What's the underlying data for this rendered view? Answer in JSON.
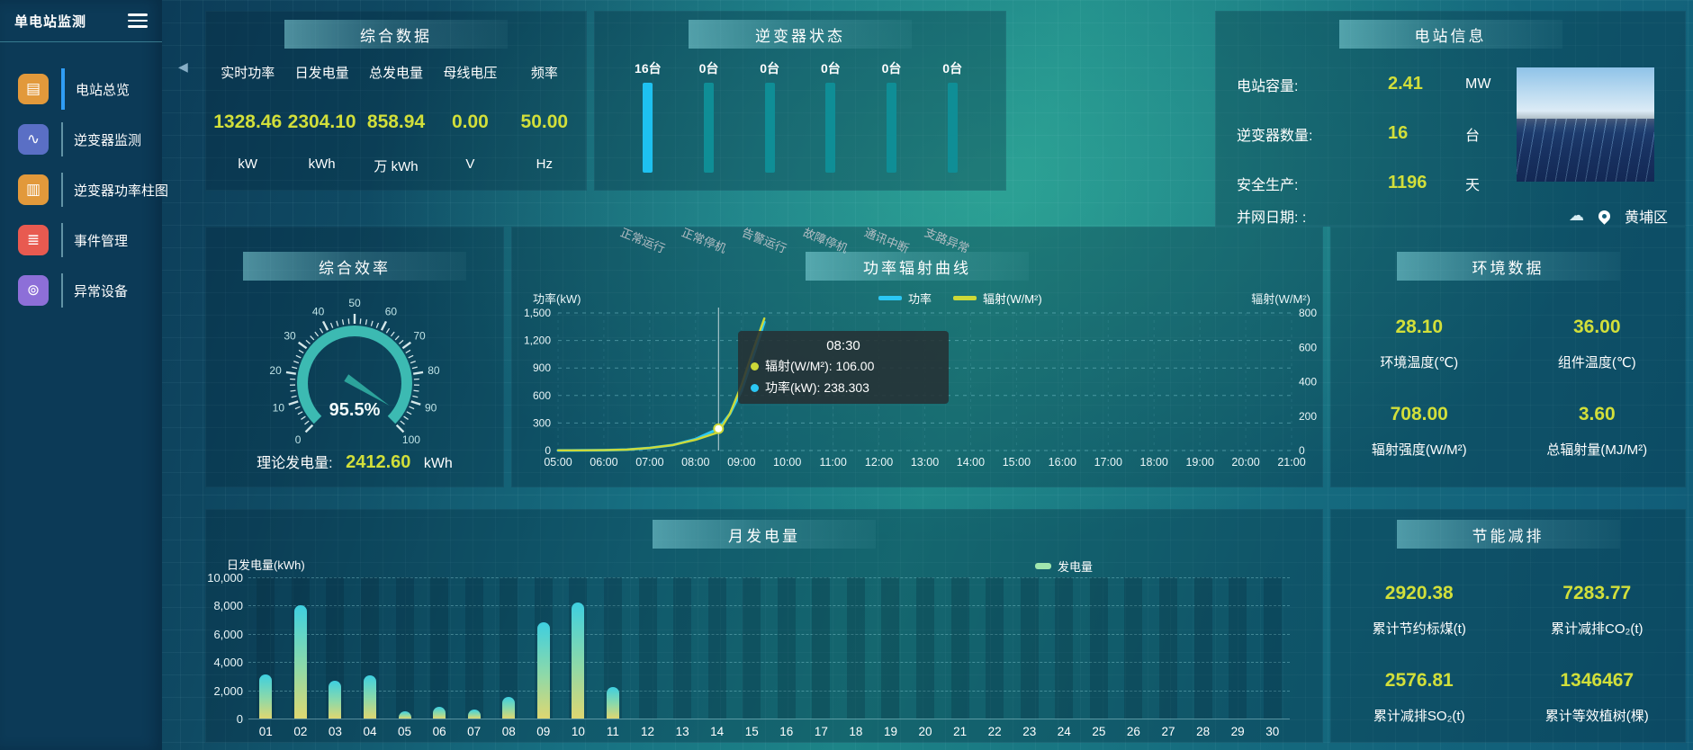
{
  "app": {
    "title": "单电站监测"
  },
  "sidebar": {
    "items": [
      {
        "label": "电站总览",
        "icon": "station-overview-icon",
        "glyph": "▤",
        "color": "#e2993b",
        "active": true
      },
      {
        "label": "逆变器监测",
        "icon": "inverter-monitor-icon",
        "glyph": "∿",
        "color": "#5a6fc5",
        "active": false
      },
      {
        "label": "逆变器功率柱图",
        "icon": "inverter-power-bar-icon",
        "glyph": "▥",
        "color": "#e2993b",
        "active": false
      },
      {
        "label": "事件管理",
        "icon": "event-management-icon",
        "glyph": "≣",
        "color": "#e85a50",
        "active": false
      },
      {
        "label": "异常设备",
        "icon": "abnormal-device-icon",
        "glyph": "⊚",
        "color": "#8d6fd8",
        "active": false
      }
    ]
  },
  "panels": {
    "summary": {
      "title": "综合数据",
      "stats": [
        {
          "label": "实时功率",
          "value": "1328.46",
          "unit": "kW"
        },
        {
          "label": "日发电量",
          "value": "2304.10",
          "unit": "kWh"
        },
        {
          "label": "总发电量",
          "value": "858.94",
          "unit": "万 kWh"
        },
        {
          "label": "母线电压",
          "value": "0.00",
          "unit": "V"
        },
        {
          "label": "频率",
          "value": "50.00",
          "unit": "Hz"
        }
      ]
    },
    "inverter": {
      "title": "逆变器状态",
      "bars": [
        {
          "count": "16台",
          "label": "正常运行",
          "active": true
        },
        {
          "count": "0台",
          "label": "正常停机",
          "active": false
        },
        {
          "count": "0台",
          "label": "告警运行",
          "active": false
        },
        {
          "count": "0台",
          "label": "故障停机",
          "active": false
        },
        {
          "count": "0台",
          "label": "通讯中断",
          "active": false
        },
        {
          "count": "0台",
          "label": "支路异常",
          "active": false
        }
      ]
    },
    "station": {
      "title": "电站信息",
      "rows": [
        {
          "label": "电站容量:",
          "value": "2.41",
          "unit": "MW"
        },
        {
          "label": "逆变器数量:",
          "value": "16",
          "unit": "台"
        },
        {
          "label": "安全生产:",
          "value": "1196",
          "unit": "天"
        },
        {
          "label": "并网日期:",
          "value": ":",
          "unit": ""
        }
      ],
      "location": "黄埔区"
    },
    "efficiency": {
      "title": "综合效率",
      "theory_label": "理论发电量:",
      "theory_value": "2412.60",
      "theory_unit": "kWh"
    },
    "power_radiation": {
      "title": "功率辐射曲线",
      "y_left_label": "功率(kW)",
      "y_right_label": "辐射(W/M²)",
      "tooltip": {
        "time": "08:30",
        "rows": [
          {
            "name": "辐射(W/M²)",
            "value": "106.00",
            "color": "#cdd938"
          },
          {
            "name": "功率(kW)",
            "value": "238.303",
            "color": "#2bc7f4"
          }
        ]
      }
    },
    "environment": {
      "title": "环境数据",
      "stats": [
        {
          "value": "28.10",
          "label": "环境温度(℃)"
        },
        {
          "value": "36.00",
          "label": "组件温度(℃)"
        },
        {
          "value": "708.00",
          "label": "辐射强度(W/M²)"
        },
        {
          "value": "3.60",
          "label": "总辐射量(MJ/M²)"
        }
      ]
    },
    "monthly": {
      "title": "月发电量",
      "ylabel": "日发电量(kWh)",
      "legend": "发电量"
    },
    "savings": {
      "title": "节能减排",
      "stats": [
        {
          "value": "2920.38",
          "label": "累计节约标煤(t)"
        },
        {
          "value": "7283.77",
          "label": "累计减排CO₂(t)"
        },
        {
          "value": "2576.81",
          "label": "累计减排SO₂(t)"
        },
        {
          "value": "1346467",
          "label": "累计等效植树(棵)"
        }
      ]
    }
  },
  "chart_data": [
    {
      "id": "power_radiation_curve",
      "type": "line",
      "title": "功率辐射曲线",
      "x_labels": [
        "05:00",
        "06:00",
        "07:00",
        "08:00",
        "09:00",
        "10:00",
        "11:00",
        "12:00",
        "13:00",
        "14:00",
        "15:00",
        "16:00",
        "17:00",
        "18:00",
        "19:00",
        "20:00",
        "21:00"
      ],
      "x_range": [
        5,
        21
      ],
      "y_left": {
        "label": "功率(kW)",
        "min": 0,
        "max": 1500,
        "ticks": [
          0,
          300,
          600,
          900,
          1200,
          1500
        ]
      },
      "y_right": {
        "label": "辐射(W/M²)",
        "min": 0,
        "max": 800,
        "ticks": [
          0,
          200,
          400,
          600,
          800
        ]
      },
      "legend": [
        {
          "name": "功率",
          "color": "#2bc7f4"
        },
        {
          "name": "辐射(W/M²)",
          "color": "#cdd938"
        }
      ],
      "series": [
        {
          "name": "功率",
          "axis": "left",
          "color": "#2bc7f4",
          "points": [
            [
              5,
              1
            ],
            [
              5.5,
              2
            ],
            [
              6,
              4
            ],
            [
              6.5,
              10
            ],
            [
              7,
              28
            ],
            [
              7.5,
              60
            ],
            [
              8,
              125
            ],
            [
              8.5,
              238.3
            ],
            [
              8.75,
              400
            ],
            [
              9,
              650
            ],
            [
              9.25,
              1020
            ],
            [
              9.5,
              1400
            ]
          ]
        },
        {
          "name": "辐射(W/M²)",
          "axis": "right",
          "color": "#cdd938",
          "points": [
            [
              5,
              1
            ],
            [
              5.5,
              1
            ],
            [
              6,
              2
            ],
            [
              6.5,
              5
            ],
            [
              7,
              15
            ],
            [
              7.5,
              32
            ],
            [
              8,
              62
            ],
            [
              8.5,
              106
            ],
            [
              8.75,
              215
            ],
            [
              9,
              380
            ],
            [
              9.25,
              580
            ],
            [
              9.5,
              768
            ]
          ]
        }
      ],
      "marker": {
        "x": 8.5,
        "time": "08:30",
        "power": 238.303,
        "radiation": 106.0
      },
      "legend_position": "top-right",
      "grid": true
    },
    {
      "id": "monthly_generation",
      "type": "bar",
      "title": "月发电量",
      "ylabel": "日发电量(kWh)",
      "legend": [
        "发电量"
      ],
      "ylim": [
        0,
        10000
      ],
      "yticks": [
        0,
        2000,
        4000,
        6000,
        8000,
        10000
      ],
      "categories": [
        "01",
        "02",
        "03",
        "04",
        "05",
        "06",
        "07",
        "08",
        "09",
        "10",
        "11",
        "12",
        "13",
        "14",
        "15",
        "16",
        "17",
        "18",
        "19",
        "20",
        "21",
        "22",
        "23",
        "24",
        "25",
        "26",
        "27",
        "28",
        "29",
        "30"
      ],
      "values": [
        3150,
        8000,
        2700,
        3050,
        500,
        800,
        650,
        1500,
        6800,
        8200,
        2250,
        0,
        0,
        0,
        0,
        0,
        0,
        0,
        0,
        0,
        0,
        0,
        0,
        0,
        0,
        0,
        0,
        0,
        0,
        0
      ]
    },
    {
      "id": "inverter_status_bars",
      "type": "bar",
      "title": "逆变器状态",
      "categories": [
        "正常运行",
        "正常停机",
        "告警运行",
        "故障停机",
        "通讯中断",
        "支路异常"
      ],
      "values": [
        16,
        0,
        0,
        0,
        0,
        0
      ],
      "unit": "台"
    },
    {
      "id": "efficiency_gauge",
      "type": "gauge",
      "title": "综合效率",
      "value": 95.5,
      "display": "95.5%",
      "min": 0,
      "max": 100,
      "major_ticks": [
        0,
        10,
        20,
        30,
        40,
        50,
        60,
        70,
        80,
        90,
        100
      ]
    }
  ],
  "colors": {
    "value": "#d2df3a",
    "accent": "#3cbab2",
    "bar_active": "#1ec1f0",
    "bar_idle": "#0f8e96",
    "month_bar_top": "#3ecfe0",
    "month_bar_bottom": "#ded771",
    "month_legend": "#a0e6ae"
  }
}
